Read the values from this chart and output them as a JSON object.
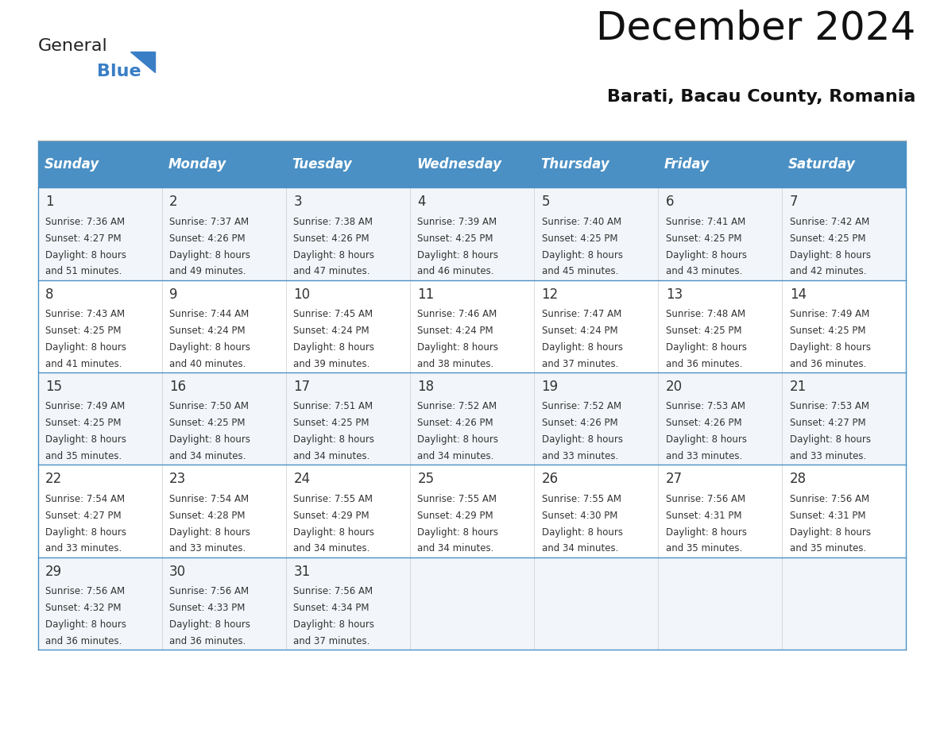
{
  "title": "December 2024",
  "subtitle": "Barati, Bacau County, Romania",
  "header_bg": "#4A90C4",
  "header_text_color": "#FFFFFF",
  "day_names": [
    "Sunday",
    "Monday",
    "Tuesday",
    "Wednesday",
    "Thursday",
    "Friday",
    "Saturday"
  ],
  "row_bg_even": "#F2F6FA",
  "row_bg_odd": "#FFFFFF",
  "cell_border_color": "#4A90C4",
  "date_color": "#333333",
  "info_color": "#333333",
  "logo_general_color": "#222222",
  "logo_blue_color": "#3A7EC6",
  "calendar_data": [
    [
      {
        "day": 1,
        "sunrise": "7:36 AM",
        "sunset": "4:27 PM",
        "daylight": "8 hours and 51 minutes."
      },
      {
        "day": 2,
        "sunrise": "7:37 AM",
        "sunset": "4:26 PM",
        "daylight": "8 hours and 49 minutes."
      },
      {
        "day": 3,
        "sunrise": "7:38 AM",
        "sunset": "4:26 PM",
        "daylight": "8 hours and 47 minutes."
      },
      {
        "day": 4,
        "sunrise": "7:39 AM",
        "sunset": "4:25 PM",
        "daylight": "8 hours and 46 minutes."
      },
      {
        "day": 5,
        "sunrise": "7:40 AM",
        "sunset": "4:25 PM",
        "daylight": "8 hours and 45 minutes."
      },
      {
        "day": 6,
        "sunrise": "7:41 AM",
        "sunset": "4:25 PM",
        "daylight": "8 hours and 43 minutes."
      },
      {
        "day": 7,
        "sunrise": "7:42 AM",
        "sunset": "4:25 PM",
        "daylight": "8 hours and 42 minutes."
      }
    ],
    [
      {
        "day": 8,
        "sunrise": "7:43 AM",
        "sunset": "4:25 PM",
        "daylight": "8 hours and 41 minutes."
      },
      {
        "day": 9,
        "sunrise": "7:44 AM",
        "sunset": "4:24 PM",
        "daylight": "8 hours and 40 minutes."
      },
      {
        "day": 10,
        "sunrise": "7:45 AM",
        "sunset": "4:24 PM",
        "daylight": "8 hours and 39 minutes."
      },
      {
        "day": 11,
        "sunrise": "7:46 AM",
        "sunset": "4:24 PM",
        "daylight": "8 hours and 38 minutes."
      },
      {
        "day": 12,
        "sunrise": "7:47 AM",
        "sunset": "4:24 PM",
        "daylight": "8 hours and 37 minutes."
      },
      {
        "day": 13,
        "sunrise": "7:48 AM",
        "sunset": "4:25 PM",
        "daylight": "8 hours and 36 minutes."
      },
      {
        "day": 14,
        "sunrise": "7:49 AM",
        "sunset": "4:25 PM",
        "daylight": "8 hours and 36 minutes."
      }
    ],
    [
      {
        "day": 15,
        "sunrise": "7:49 AM",
        "sunset": "4:25 PM",
        "daylight": "8 hours and 35 minutes."
      },
      {
        "day": 16,
        "sunrise": "7:50 AM",
        "sunset": "4:25 PM",
        "daylight": "8 hours and 34 minutes."
      },
      {
        "day": 17,
        "sunrise": "7:51 AM",
        "sunset": "4:25 PM",
        "daylight": "8 hours and 34 minutes."
      },
      {
        "day": 18,
        "sunrise": "7:52 AM",
        "sunset": "4:26 PM",
        "daylight": "8 hours and 34 minutes."
      },
      {
        "day": 19,
        "sunrise": "7:52 AM",
        "sunset": "4:26 PM",
        "daylight": "8 hours and 33 minutes."
      },
      {
        "day": 20,
        "sunrise": "7:53 AM",
        "sunset": "4:26 PM",
        "daylight": "8 hours and 33 minutes."
      },
      {
        "day": 21,
        "sunrise": "7:53 AM",
        "sunset": "4:27 PM",
        "daylight": "8 hours and 33 minutes."
      }
    ],
    [
      {
        "day": 22,
        "sunrise": "7:54 AM",
        "sunset": "4:27 PM",
        "daylight": "8 hours and 33 minutes."
      },
      {
        "day": 23,
        "sunrise": "7:54 AM",
        "sunset": "4:28 PM",
        "daylight": "8 hours and 33 minutes."
      },
      {
        "day": 24,
        "sunrise": "7:55 AM",
        "sunset": "4:29 PM",
        "daylight": "8 hours and 34 minutes."
      },
      {
        "day": 25,
        "sunrise": "7:55 AM",
        "sunset": "4:29 PM",
        "daylight": "8 hours and 34 minutes."
      },
      {
        "day": 26,
        "sunrise": "7:55 AM",
        "sunset": "4:30 PM",
        "daylight": "8 hours and 34 minutes."
      },
      {
        "day": 27,
        "sunrise": "7:56 AM",
        "sunset": "4:31 PM",
        "daylight": "8 hours and 35 minutes."
      },
      {
        "day": 28,
        "sunrise": "7:56 AM",
        "sunset": "4:31 PM",
        "daylight": "8 hours and 35 minutes."
      }
    ],
    [
      {
        "day": 29,
        "sunrise": "7:56 AM",
        "sunset": "4:32 PM",
        "daylight": "8 hours and 36 minutes."
      },
      {
        "day": 30,
        "sunrise": "7:56 AM",
        "sunset": "4:33 PM",
        "daylight": "8 hours and 36 minutes."
      },
      {
        "day": 31,
        "sunrise": "7:56 AM",
        "sunset": "4:34 PM",
        "daylight": "8 hours and 37 minutes."
      },
      null,
      null,
      null,
      null
    ]
  ]
}
